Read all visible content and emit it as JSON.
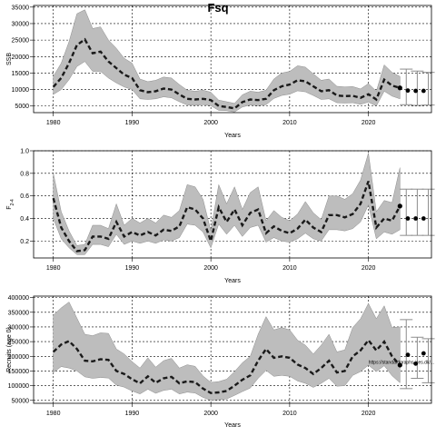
{
  "title": "Fsq",
  "chart_data": [
    {
      "type": "line",
      "ylabel": "SSB",
      "xlabel": "Years",
      "xlim": [
        1977.5,
        2028
      ],
      "ylim": [
        3000,
        35500
      ],
      "xticks": [
        1980,
        1990,
        2000,
        2010,
        2020
      ],
      "yticks": [
        5000,
        10000,
        15000,
        20000,
        25000,
        30000,
        35000
      ],
      "grid": true,
      "x": [
        1980,
        1981,
        1982,
        1983,
        1984,
        1985,
        1986,
        1987,
        1988,
        1989,
        1990,
        1991,
        1992,
        1993,
        1994,
        1995,
        1996,
        1997,
        1998,
        1999,
        2000,
        2001,
        2002,
        2003,
        2004,
        2005,
        2006,
        2007,
        2008,
        2009,
        2010,
        2011,
        2012,
        2013,
        2014,
        2015,
        2016,
        2017,
        2018,
        2019,
        2020,
        2021,
        2022,
        2023,
        2024
      ],
      "estimate": [
        10800,
        13500,
        18000,
        23500,
        25200,
        21000,
        21500,
        18500,
        16500,
        14500,
        13500,
        9800,
        9200,
        9500,
        10300,
        10000,
        8500,
        7200,
        7000,
        7200,
        6800,
        5000,
        4700,
        4300,
        6200,
        7000,
        6800,
        7200,
        9800,
        11000,
        11500,
        12800,
        12500,
        11000,
        9500,
        9800,
        8200,
        8000,
        8100,
        7500,
        8600,
        7000,
        13000,
        11200,
        10500
      ],
      "lower": [
        8500,
        10000,
        13000,
        17000,
        18500,
        15500,
        15500,
        13500,
        12000,
        10800,
        10000,
        7200,
        7000,
        7200,
        7800,
        7500,
        6300,
        5300,
        5200,
        5400,
        5100,
        3700,
        3600,
        3200,
        4700,
        5300,
        5100,
        5400,
        7300,
        8200,
        8600,
        9600,
        9300,
        8200,
        7000,
        7200,
        6000,
        5900,
        6000,
        5500,
        6200,
        5000,
        9500,
        8000,
        7200
      ],
      "upper": [
        14000,
        18000,
        24500,
        33000,
        34200,
        28500,
        29000,
        25000,
        22500,
        19500,
        18000,
        13200,
        12400,
        12800,
        13800,
        13500,
        11500,
        9800,
        9500,
        9800,
        9200,
        6800,
        6300,
        5800,
        8400,
        9500,
        9200,
        9800,
        13200,
        15000,
        15500,
        17200,
        16800,
        14800,
        12800,
        13200,
        11000,
        10800,
        10900,
        10200,
        11800,
        9500,
        17500,
        15200,
        14000
      ],
      "forecast": {
        "x": [
          2025,
          2026,
          2027
        ],
        "values": [
          9700,
          9600,
          9600
        ],
        "bar_x": [
          2024.8,
          2026.2,
          2027.6
        ],
        "bar_lower": [
          5400,
          5200,
          5300
        ],
        "bar_upper": [
          16200,
          15600,
          15200
        ]
      }
    },
    {
      "type": "line",
      "ylabel": "F",
      "ylabel_sub": "2-4",
      "xlabel": "Years",
      "xlim": [
        1977.5,
        2028
      ],
      "ylim": [
        0.05,
        1.0
      ],
      "xticks": [
        1980,
        1990,
        2000,
        2010,
        2020
      ],
      "yticks": [
        0.2,
        0.4,
        0.6,
        0.8,
        1.0
      ],
      "ytick_labels": [
        "0.2",
        "0.4",
        "0.6",
        "0.8",
        "1.0"
      ],
      "grid": true,
      "x": [
        1980,
        1981,
        1982,
        1983,
        1984,
        1985,
        1986,
        1987,
        1988,
        1989,
        1990,
        1991,
        1992,
        1993,
        1994,
        1995,
        1996,
        1997,
        1998,
        1999,
        2000,
        2001,
        2002,
        2003,
        2004,
        2005,
        2006,
        2007,
        2008,
        2009,
        2010,
        2011,
        2012,
        2013,
        2014,
        2015,
        2016,
        2017,
        2018,
        2019,
        2020,
        2021,
        2022,
        2023,
        2024
      ],
      "estimate": [
        0.58,
        0.32,
        0.2,
        0.11,
        0.12,
        0.24,
        0.24,
        0.22,
        0.37,
        0.24,
        0.28,
        0.25,
        0.28,
        0.25,
        0.3,
        0.29,
        0.33,
        0.5,
        0.48,
        0.4,
        0.2,
        0.5,
        0.37,
        0.48,
        0.34,
        0.45,
        0.48,
        0.27,
        0.33,
        0.29,
        0.27,
        0.31,
        0.39,
        0.32,
        0.28,
        0.43,
        0.43,
        0.41,
        0.44,
        0.53,
        0.73,
        0.32,
        0.4,
        0.38,
        0.51
      ],
      "lower": [
        0.4,
        0.22,
        0.14,
        0.08,
        0.08,
        0.17,
        0.17,
        0.15,
        0.26,
        0.17,
        0.2,
        0.18,
        0.2,
        0.18,
        0.21,
        0.2,
        0.23,
        0.35,
        0.34,
        0.28,
        0.14,
        0.35,
        0.26,
        0.34,
        0.24,
        0.32,
        0.34,
        0.19,
        0.23,
        0.2,
        0.19,
        0.22,
        0.27,
        0.22,
        0.2,
        0.3,
        0.3,
        0.29,
        0.31,
        0.37,
        0.52,
        0.22,
        0.28,
        0.26,
        0.3
      ],
      "upper": [
        0.8,
        0.46,
        0.29,
        0.16,
        0.17,
        0.34,
        0.34,
        0.31,
        0.53,
        0.34,
        0.4,
        0.36,
        0.4,
        0.36,
        0.43,
        0.41,
        0.47,
        0.7,
        0.68,
        0.57,
        0.29,
        0.7,
        0.53,
        0.68,
        0.48,
        0.63,
        0.68,
        0.38,
        0.47,
        0.41,
        0.38,
        0.44,
        0.55,
        0.45,
        0.39,
        0.6,
        0.6,
        0.57,
        0.62,
        0.74,
        0.98,
        0.46,
        0.56,
        0.54,
        0.85
      ],
      "forecast": {
        "x": [
          2025,
          2026,
          2027
        ],
        "values": [
          0.4,
          0.4,
          0.4
        ],
        "bar_x": [
          2024.8,
          2026.2,
          2027.6
        ],
        "bar_lower": [
          0.25,
          0.25,
          0.25
        ],
        "bar_upper": [
          0.66,
          0.66,
          0.66
        ]
      }
    },
    {
      "type": "line",
      "ylabel": "Recruits (age 0)",
      "xlabel": "Years",
      "xlim": [
        1977.5,
        2028
      ],
      "ylim": [
        40000,
        405000
      ],
      "xticks": [
        1980,
        1990,
        2000,
        2010,
        2020
      ],
      "yticks": [
        50000,
        100000,
        150000,
        200000,
        250000,
        300000,
        350000,
        400000
      ],
      "grid": true,
      "annotation": "https://standardgraphs.ices.dk/...",
      "x": [
        1980,
        1981,
        1982,
        1983,
        1984,
        1985,
        1986,
        1987,
        1988,
        1989,
        1990,
        1991,
        1992,
        1993,
        1994,
        1995,
        1996,
        1997,
        1998,
        1999,
        2000,
        2001,
        2002,
        2003,
        2004,
        2005,
        2006,
        2007,
        2008,
        2009,
        2010,
        2011,
        2012,
        2013,
        2014,
        2015,
        2016,
        2017,
        2018,
        2019,
        2020,
        2021,
        2022,
        2023,
        2024
      ],
      "estimate": [
        215000,
        240000,
        252000,
        225000,
        185000,
        183000,
        190000,
        188000,
        150000,
        140000,
        122000,
        108000,
        132000,
        110000,
        125000,
        130000,
        108000,
        115000,
        112000,
        90000,
        75000,
        77000,
        82000,
        100000,
        120000,
        135000,
        185000,
        225000,
        195000,
        200000,
        195000,
        172000,
        160000,
        140000,
        160000,
        185000,
        145000,
        150000,
        200000,
        220000,
        255000,
        220000,
        250000,
        200000,
        170000
      ],
      "lower": [
        145000,
        165000,
        160000,
        150000,
        130000,
        125000,
        128000,
        126000,
        102000,
        95000,
        82000,
        72000,
        88000,
        74000,
        84000,
        88000,
        72000,
        78000,
        75000,
        60000,
        50000,
        52000,
        55000,
        67000,
        80000,
        92000,
        125000,
        152000,
        132000,
        135000,
        132000,
        116000,
        108000,
        94000,
        108000,
        125000,
        98000,
        100000,
        135000,
        148000,
        170000,
        148000,
        168000,
        134000,
        110000
      ],
      "upper": [
        340000,
        365000,
        385000,
        330000,
        275000,
        270000,
        280000,
        278000,
        225000,
        208000,
        182000,
        160000,
        195000,
        163000,
        185000,
        193000,
        160000,
        171000,
        166000,
        133000,
        111000,
        114000,
        122000,
        148000,
        178000,
        200000,
        275000,
        335000,
        290000,
        298000,
        290000,
        255000,
        238000,
        208000,
        238000,
        275000,
        215000,
        222000,
        298000,
        328000,
        380000,
        328000,
        372000,
        298000,
        300000
      ],
      "forecast": {
        "x": [
          2025,
          2026,
          2027
        ],
        "values": [
          205000,
          175000,
          210000
        ],
        "bar_x": [
          2024.8,
          2026.2,
          2027.6
        ],
        "bar_lower": [
          90000,
          125000,
          110000
        ],
        "bar_upper": [
          325000,
          265000,
          260000
        ]
      }
    }
  ]
}
